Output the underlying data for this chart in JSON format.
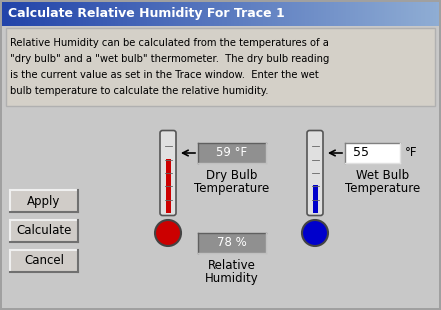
{
  "title": "Calculate Relative Humidity For Trace 1",
  "bg_color": "#c8c8c8",
  "title_color_left": "#2244aa",
  "title_color_right": "#aabbdd",
  "description": "Relative Humidity can be calculated from the temperatures of a\n\"dry bulb\" and a \"wet bulb\" thermometer.  The dry bulb reading\nis the current value as set in the Trace window.  Enter the wet\nbulb temperature to calculate the relative humidity.",
  "dry_bulb_value": "59 °F",
  "dry_bulb_label1": "Dry Bulb",
  "dry_bulb_label2": "Temperature",
  "wet_bulb_value": "55",
  "wet_bulb_unit": "°F",
  "wet_bulb_label1": "Wet Bulb",
  "wet_bulb_label2": "Temperature",
  "humidity_value": "78 %",
  "humidity_label1": "Relative",
  "humidity_label2": "Humidity",
  "buttons": [
    "Apply",
    "Calculate",
    "Cancel"
  ],
  "thermo_red": "#cc0000",
  "thermo_blue": "#0000cc",
  "box_gray": "#888888",
  "input_white": "#ffffff",
  "text_color": "#000000"
}
